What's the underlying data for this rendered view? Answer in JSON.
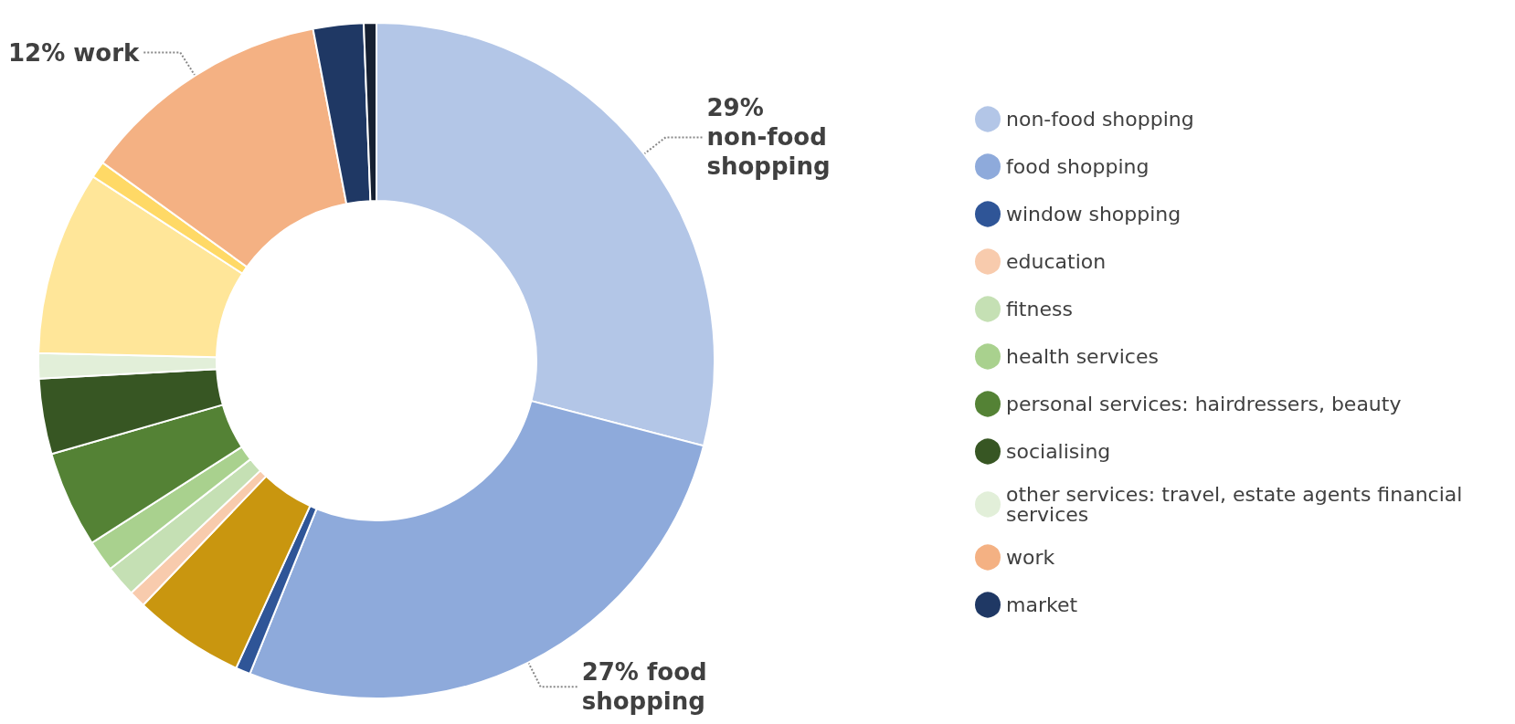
{
  "chart_data": {
    "type": "donut",
    "categories": [
      "non-food shopping",
      "food shopping",
      "window shopping",
      null,
      "education",
      "fitness",
      "health services",
      "personal services: hairdressers, beauty",
      "socialising",
      "other services: travel, estate agents financial services",
      null,
      null,
      "work",
      "market",
      null
    ],
    "values": [
      29,
      27,
      0.7,
      5.3,
      0.8,
      1.5,
      1.5,
      4.6,
      3.6,
      1.2,
      8.8,
      0.8,
      12,
      2.4,
      0.6
    ],
    "colors": [
      "#b3c6e7",
      "#8eaadb",
      "#2f5597",
      "#c9960f",
      "#f8cbad",
      "#c5e0b4",
      "#a9d18e",
      "#548235",
      "#375623",
      "#e2efd9",
      "#ffe699",
      "#ffd966",
      "#f4b183",
      "#1f3864",
      "#162032"
    ],
    "value_labels": [
      "29% non-food shopping",
      "27% food shopping",
      null,
      null,
      null,
      null,
      null,
      null,
      null,
      null,
      null,
      null,
      "12% work",
      null,
      null
    ],
    "legend": "right"
  }
}
